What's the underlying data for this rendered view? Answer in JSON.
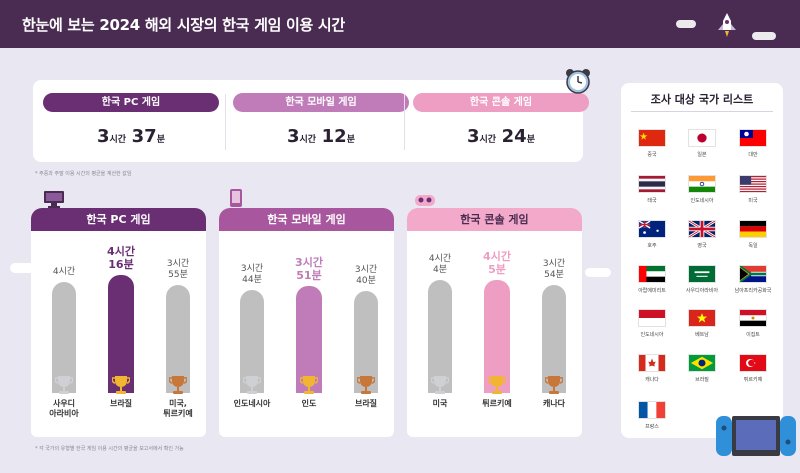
{
  "header": {
    "title": "한눈에 보는 2024 해외 시장의 한국 게임 이용 시간"
  },
  "colors": {
    "pc": "#6a2f72",
    "mobile": "#c07cb8",
    "console": "#ee9dc3",
    "bar_default": "#bfbfbf",
    "tab_console": "#f3a9c9",
    "trophy_silver": "#cfd0d4",
    "trophy_gold": "#f2b531",
    "trophy_bronze": "#c8773a"
  },
  "summary": [
    {
      "label": "한국 PC 게임",
      "hours": "3",
      "hour_unit": "시간",
      "minutes": "37",
      "minute_unit": "분",
      "color": "#6a2f72"
    },
    {
      "label": "한국 모바일 게임",
      "hours": "3",
      "hour_unit": "시간",
      "minutes": "12",
      "minute_unit": "분",
      "color": "#c07cb8"
    },
    {
      "label": "한국 콘솔 게임",
      "hours": "3",
      "hour_unit": "시간",
      "minutes": "24",
      "minute_unit": "분",
      "color": "#ee9dc3"
    }
  ],
  "footnotes": {
    "top": "* 주중과 주말 이용 시간의 평균을 계산한 값임",
    "bottom": "* 각 국가의 유형별 한국 게임 이용 시간의 평균을 보고서에서 확인 가능"
  },
  "chart_data": [
    {
      "type": "bar",
      "title": "한국 PC 게임",
      "categories": [
        "사우디\n아라비아",
        "브라질",
        "미국,\n튀르키예"
      ],
      "values": [
        240,
        256,
        235
      ],
      "value_labels": [
        "4시간",
        "4시간\n16분",
        "3시간\n55분"
      ],
      "highlight_index": 1,
      "highlight_color": "#6a2f72",
      "tab_color": "#6a2f72",
      "ylim": [
        0,
        260
      ]
    },
    {
      "type": "bar",
      "title": "한국 모바일 게임",
      "categories": [
        "인도네시아",
        "인도",
        "브라질"
      ],
      "values": [
        224,
        231,
        220
      ],
      "value_labels": [
        "3시간\n44분",
        "3시간\n51분",
        "3시간\n40분"
      ],
      "highlight_index": 1,
      "highlight_color": "#c07cb8",
      "tab_color": "#a8569e",
      "ylim": [
        0,
        260
      ]
    },
    {
      "type": "bar",
      "title": "한국 콘솔 게임",
      "categories": [
        "미국",
        "튀르키예",
        "캐나다"
      ],
      "values": [
        244,
        245,
        234
      ],
      "value_labels": [
        "4시간\n4분",
        "4시간\n5분",
        "3시간\n54분"
      ],
      "highlight_index": 1,
      "highlight_color": "#ee9dc3",
      "tab_color": "#f3a9c9",
      "ylim": [
        0,
        260
      ]
    }
  ],
  "country_list": {
    "title": "조사 대상 국가 리스트",
    "countries": [
      {
        "name": "중국",
        "flag": "cn"
      },
      {
        "name": "일본",
        "flag": "jp"
      },
      {
        "name": "대만",
        "flag": "tw"
      },
      {
        "name": "태국",
        "flag": "th"
      },
      {
        "name": "인도네시아",
        "flag": "in"
      },
      {
        "name": "미국",
        "flag": "us"
      },
      {
        "name": "호주",
        "flag": "au"
      },
      {
        "name": "영국",
        "flag": "gb"
      },
      {
        "name": "독일",
        "flag": "de"
      },
      {
        "name": "아랍에미리트",
        "flag": "ae"
      },
      {
        "name": "사우디아라비아",
        "flag": "sa"
      },
      {
        "name": "남아프리카공화국",
        "flag": "za"
      },
      {
        "name": "인도네시아",
        "flag": "id"
      },
      {
        "name": "베트남",
        "flag": "vn"
      },
      {
        "name": "이집트",
        "flag": "eg"
      },
      {
        "name": "캐나다",
        "flag": "ca"
      },
      {
        "name": "브라질",
        "flag": "br"
      },
      {
        "name": "튀르키예",
        "flag": "tr"
      },
      {
        "name": "프랑스",
        "flag": "fr"
      }
    ]
  }
}
